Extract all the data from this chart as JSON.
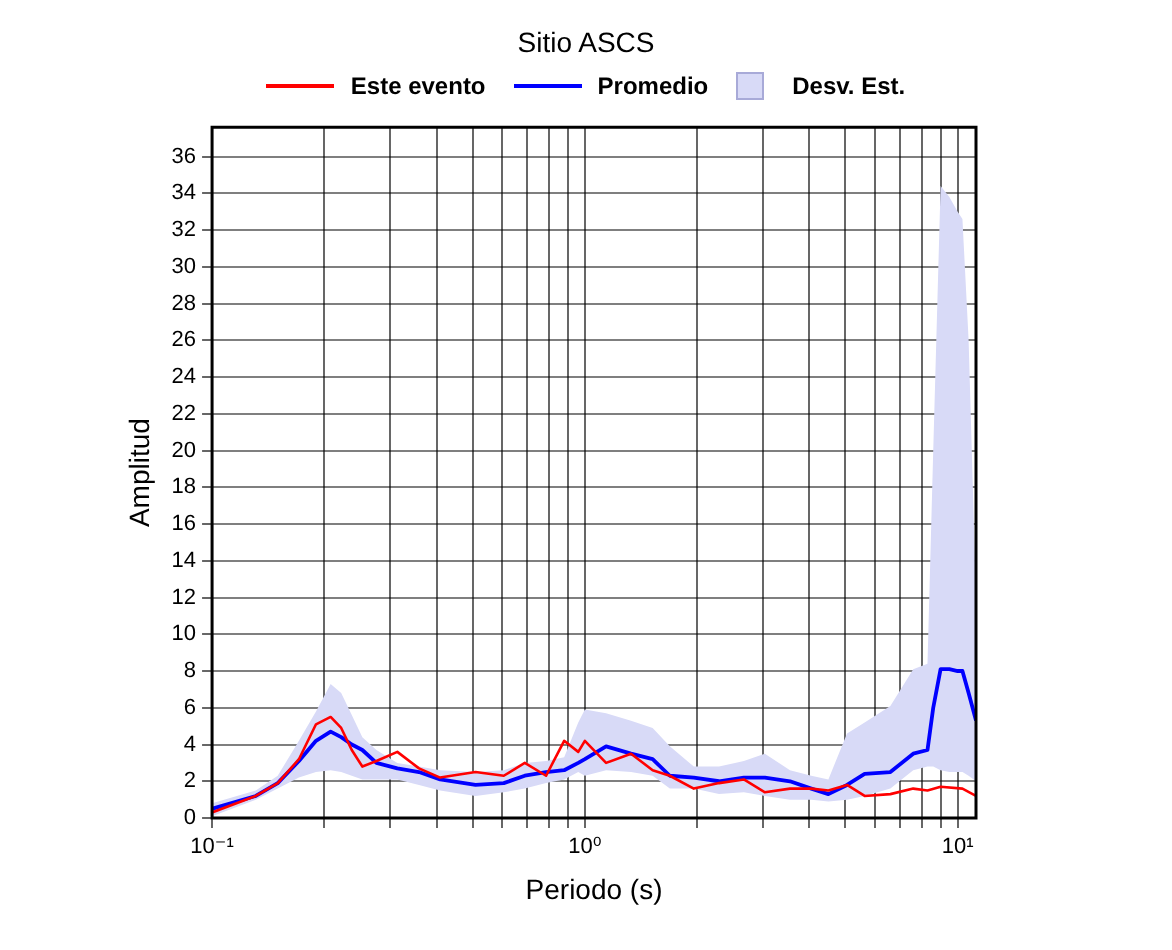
{
  "chart_data": {
    "type": "line",
    "title": "Sitio ASCS",
    "xlabel": "Periodo (s)",
    "ylabel": "Amplitud",
    "annotations": [
      "Desv. Est."
    ],
    "log": "x",
    "grid": true,
    "legend": "top",
    "marker": "none",
    "line_style": "solid",
    "xlim": [
      0.1,
      11.2
    ],
    "ylim": [
      0,
      37.6
    ],
    "xticks": [
      {
        "value": 0.1,
        "label": "10⁻¹"
      },
      {
        "value": 0.2,
        "label": null
      },
      {
        "value": 0.3,
        "label": null
      },
      {
        "value": 0.4,
        "label": null
      },
      {
        "value": 0.5,
        "label": null
      },
      {
        "value": 0.6,
        "label": null
      },
      {
        "value": 0.7,
        "label": null
      },
      {
        "value": 0.8,
        "label": null
      },
      {
        "value": 0.9,
        "label": null
      },
      {
        "value": 1,
        "label": "10⁰"
      },
      {
        "value": 2,
        "label": null
      },
      {
        "value": 3,
        "label": null
      },
      {
        "value": 4,
        "label": null
      },
      {
        "value": 5,
        "label": null
      },
      {
        "value": 6,
        "label": null
      },
      {
        "value": 7,
        "label": null
      },
      {
        "value": 8,
        "label": null
      },
      {
        "value": 9,
        "label": null
      },
      {
        "value": 10,
        "label": "10¹"
      }
    ],
    "yticks": [
      0,
      2,
      4,
      6,
      8,
      10,
      12,
      14,
      16,
      18,
      20,
      22,
      24,
      26,
      28,
      30,
      32,
      34,
      36
    ],
    "x": [
      0.1,
      0.131,
      0.15,
      0.171,
      0.19,
      0.208,
      0.222,
      0.237,
      0.253,
      0.276,
      0.314,
      0.359,
      0.409,
      0.509,
      0.606,
      0.69,
      0.787,
      0.88,
      0.96,
      1.0,
      1.14,
      1.33,
      1.52,
      1.69,
      1.96,
      2.29,
      2.67,
      3.04,
      3.55,
      4.05,
      4.5,
      5.05,
      5.63,
      6.6,
      7.6,
      8.3,
      9.0,
      10.3,
      11.2
    ],
    "series": [
      {
        "name": "Este evento",
        "color": "#ff0000",
        "values": [
          0.3,
          1.2,
          1.9,
          3.2,
          5.1,
          5.5,
          4.9,
          3.7,
          2.8,
          3.1,
          3.6,
          2.7,
          2.2,
          2.5,
          2.3,
          3.0,
          2.3,
          4.2,
          3.6,
          4.2,
          3.0,
          3.5,
          2.6,
          2.3,
          1.6,
          1.9,
          2.1,
          1.4,
          1.6,
          1.6,
          1.5,
          1.8,
          1.2,
          1.3,
          1.6,
          1.5,
          1.7,
          1.6,
          1.2
        ]
      },
      {
        "name": "Promedio",
        "color": "#0000ff",
        "x": [
          0.1,
          0.131,
          0.15,
          0.171,
          0.19,
          0.208,
          0.222,
          0.237,
          0.253,
          0.276,
          0.314,
          0.359,
          0.409,
          0.509,
          0.606,
          0.69,
          0.787,
          0.88,
          0.96,
          1.0,
          1.14,
          1.33,
          1.52,
          1.69,
          1.96,
          2.29,
          2.67,
          3.04,
          3.55,
          4.05,
          4.5,
          5.05,
          5.63,
          6.6,
          7.6,
          8.3,
          8.6,
          9.0,
          9.5,
          10.0,
          10.3,
          10.7,
          11.2
        ],
        "values": [
          0.5,
          1.2,
          1.9,
          3.1,
          4.2,
          4.7,
          4.4,
          4.0,
          3.7,
          3.0,
          2.7,
          2.5,
          2.1,
          1.8,
          1.9,
          2.3,
          2.5,
          2.6,
          3.0,
          3.2,
          3.9,
          3.5,
          3.2,
          2.3,
          2.2,
          2.0,
          2.2,
          2.2,
          2.0,
          1.6,
          1.3,
          1.8,
          2.4,
          2.5,
          3.5,
          3.7,
          6.0,
          8.1,
          8.1,
          8.0,
          8.0,
          6.8,
          5.3
        ],
        "upper": [
          0.8,
          1.5,
          2.3,
          4.2,
          5.8,
          7.3,
          6.8,
          5.6,
          4.4,
          3.7,
          3.0,
          2.8,
          2.6,
          2.5,
          2.6,
          3.0,
          3.1,
          3.3,
          5.2,
          5.9,
          5.7,
          5.3,
          4.9,
          3.9,
          2.8,
          2.8,
          3.1,
          3.5,
          2.6,
          2.3,
          2.1,
          4.6,
          5.2,
          6.1,
          8.1,
          8.4,
          20,
          34.4,
          33.8,
          33,
          32.6,
          26,
          12
        ],
        "lower": [
          0.1,
          1.0,
          1.6,
          2.2,
          2.5,
          2.6,
          2.5,
          2.3,
          2.1,
          2.1,
          2.1,
          1.8,
          1.5,
          1.2,
          1.4,
          1.6,
          1.9,
          2.1,
          2.5,
          2.3,
          2.6,
          2.5,
          2.3,
          1.6,
          1.6,
          1.3,
          1.4,
          1.2,
          1.0,
          1.0,
          0.9,
          1.0,
          1.2,
          1.6,
          2.6,
          2.8,
          2.8,
          2.6,
          2.5,
          2.5,
          2.5,
          2.3,
          2.0
        ]
      }
    ]
  }
}
